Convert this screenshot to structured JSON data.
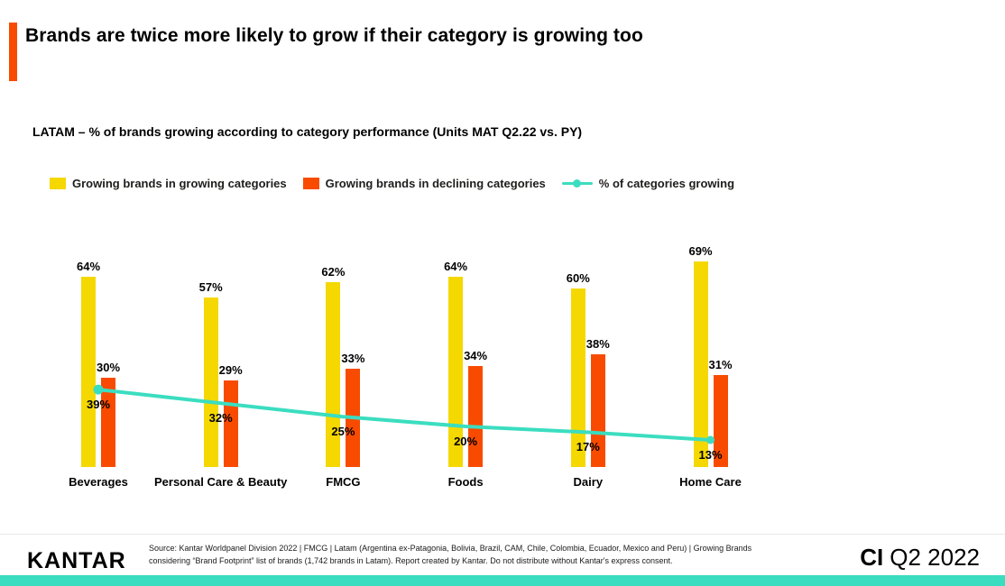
{
  "title": "Brands are twice more likely to grow if their category is growing too",
  "subtitle": "LATAM – % of brands growing according to category performance (Units MAT Q2.22 vs. PY)",
  "legend": [
    {
      "label": "Growing brands in growing categories",
      "color": "#F5D800"
    },
    {
      "label": "Growing brands in declining categories",
      "color": "#F84B00"
    },
    {
      "label": "% of categories growing",
      "color": "#3BDDC0"
    }
  ],
  "chart_data": {
    "type": "bar",
    "categories": [
      "Beverages",
      "Personal Care & Beauty",
      "FMCG",
      "Foods",
      "Dairy",
      "Home Care"
    ],
    "series": [
      {
        "name": "Growing brands in growing categories",
        "type": "bar",
        "color": "#F5D800",
        "values": [
          64,
          57,
          62,
          64,
          60,
          69
        ]
      },
      {
        "name": "Growing brands in declining categories",
        "type": "bar",
        "color": "#F84B00",
        "values": [
          30,
          29,
          33,
          34,
          38,
          31
        ]
      },
      {
        "name": "% of categories growing",
        "type": "line",
        "color": "#3BDDC0",
        "values": [
          39,
          32,
          25,
          20,
          17,
          13
        ]
      }
    ],
    "value_suffix": "%",
    "ylim": [
      0,
      75
    ],
    "grid": false,
    "legend_position": "top",
    "title": "LATAM – % of brands growing according to category performance (Units MAT Q2.22 vs. PY)",
    "xlabel": "",
    "ylabel": ""
  },
  "footer": {
    "logo": "KANTAR",
    "source": "Source: Kantar Worldpanel Division 2022 | FMCG | Latam (Argentina ex-Patagonia, Bolivia, Brazil, CAM, Chile, Colombia, Ecuador, Mexico and Peru) | Growing Brands considering “Brand Footprint” list of brands (1,742 brands in Latam). Report created by Kantar. Do not distribute without Kantar's express consent.",
    "edition_bold": "CI",
    "edition_rest": "Q2 2022"
  },
  "colors": {
    "accent_orange": "#F84B00",
    "yellow": "#F5D800",
    "teal": "#3BDDC0",
    "text": "#000000"
  }
}
